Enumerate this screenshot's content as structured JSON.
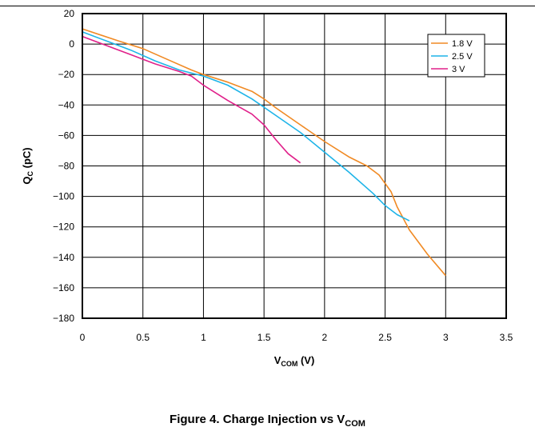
{
  "chart_data": {
    "type": "line",
    "title": "",
    "xlabel": {
      "main": "V",
      "sub": "COM",
      "suffix": " (V)"
    },
    "ylabel": {
      "main": "Q",
      "sub": "C",
      "suffix": " (pC)"
    },
    "xlim": [
      0,
      3.5
    ],
    "ylim": [
      -180,
      20
    ],
    "xticks": [
      0,
      0.5,
      1,
      1.5,
      2,
      2.5,
      3,
      3.5
    ],
    "xtick_labels": [
      "0",
      "0.5",
      "1",
      "1.5",
      "2",
      "2.5",
      "3",
      "3.5"
    ],
    "yticks": [
      20,
      0,
      -20,
      -40,
      -60,
      -80,
      -100,
      -120,
      -140,
      -160,
      -180
    ],
    "ytick_labels": [
      "20",
      "0",
      "−20",
      "−40",
      "−60",
      "−80",
      "−100",
      "−120",
      "−140",
      "−160",
      "−180"
    ],
    "grid": true,
    "legend_position": "top-right",
    "series": [
      {
        "name": "1.8 V",
        "color": "#f08a24",
        "x": [
          0,
          0.3,
          0.5,
          0.7,
          0.9,
          1.0,
          1.2,
          1.4,
          1.5,
          1.6,
          1.8,
          2.0,
          2.2,
          2.35,
          2.45,
          2.55,
          2.6,
          2.7,
          2.85,
          3.0
        ],
        "y": [
          10,
          2,
          -3,
          -10,
          -17,
          -20,
          -25,
          -31,
          -36,
          -42,
          -53,
          -64,
          -74,
          -80,
          -86,
          -97,
          -107,
          -122,
          -138,
          -152
        ]
      },
      {
        "name": "2.5 V",
        "color": "#1eb4e8",
        "x": [
          0,
          0.2,
          0.4,
          0.6,
          0.8,
          1.0,
          1.2,
          1.4,
          1.6,
          1.8,
          2.0,
          2.2,
          2.4,
          2.5,
          2.6,
          2.7
        ],
        "y": [
          8,
          2,
          -4,
          -11,
          -17,
          -21,
          -27,
          -36,
          -47,
          -58,
          -71,
          -84,
          -98,
          -106,
          -112,
          -116
        ]
      },
      {
        "name": "3 V",
        "color": "#e0208a",
        "x": [
          0,
          0.2,
          0.4,
          0.6,
          0.8,
          0.9,
          1.0,
          1.2,
          1.4,
          1.5,
          1.6,
          1.7,
          1.8
        ],
        "y": [
          5,
          -1,
          -7,
          -13,
          -18,
          -21,
          -27,
          -37,
          -46,
          -53,
          -63,
          -72,
          -78
        ]
      }
    ]
  },
  "caption": {
    "text": "Figure 4. Charge Injection vs V",
    "sub": "COM"
  }
}
